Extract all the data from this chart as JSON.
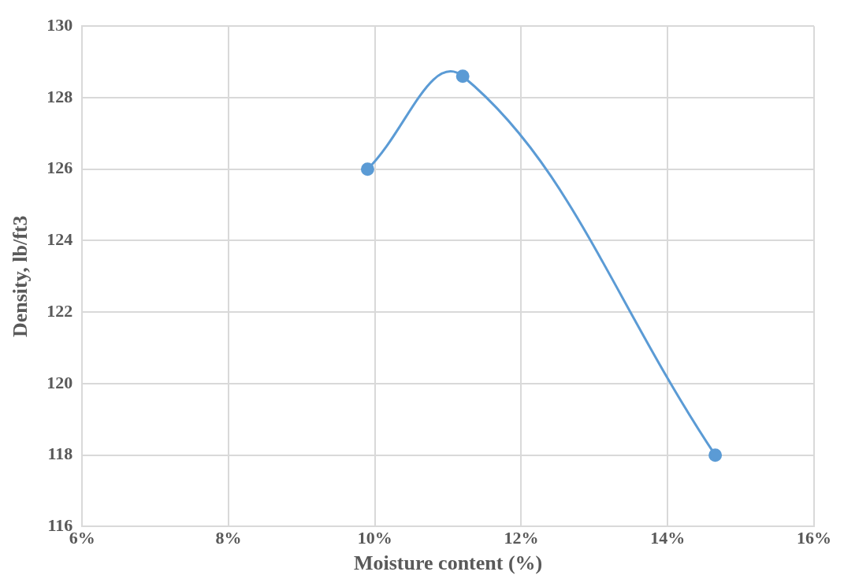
{
  "chart_data": {
    "type": "line",
    "xlabel": "Moisture content (%)",
    "ylabel": "Density, lb/ft3",
    "x": [
      9.9,
      11.2,
      14.65
    ],
    "values": [
      126,
      128.6,
      118
    ],
    "color": "#5b9bd5",
    "xlim": [
      6,
      16
    ],
    "xticks": [
      {
        "value": 6,
        "label": "6%"
      },
      {
        "value": 8,
        "label": "8%"
      },
      {
        "value": 10,
        "label": "10%"
      },
      {
        "value": 12,
        "label": "12%"
      },
      {
        "value": 14,
        "label": "14%"
      },
      {
        "value": 16,
        "label": "16%"
      }
    ],
    "ylim": [
      116,
      130
    ],
    "yticks": [
      116,
      118,
      120,
      122,
      124,
      126,
      128,
      130
    ],
    "grid": true,
    "marker": "circle"
  }
}
